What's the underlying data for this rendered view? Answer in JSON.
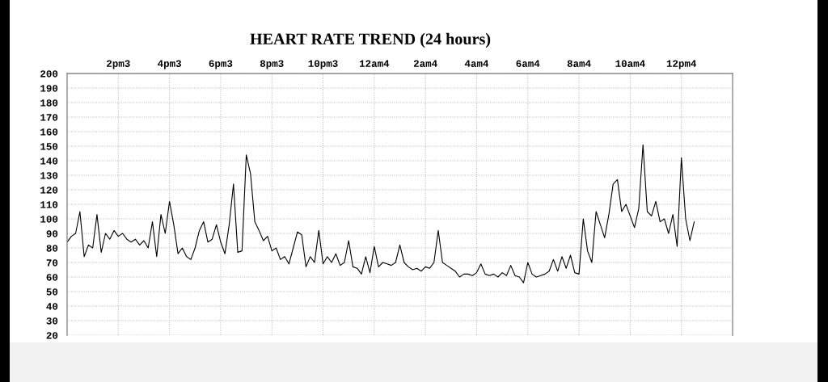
{
  "chart_data": {
    "type": "line",
    "title": "HEART RATE TREND (24 hours)",
    "categories": [
      null,
      null,
      null,
      null,
      null,
      null,
      null,
      null,
      null,
      null,
      null,
      null,
      "2pm3",
      null,
      null,
      null,
      null,
      null,
      null,
      null,
      null,
      null,
      null,
      null,
      "4pm3",
      null,
      null,
      null,
      null,
      null,
      null,
      null,
      null,
      null,
      null,
      null,
      "6pm3",
      null,
      null,
      null,
      null,
      null,
      null,
      null,
      null,
      null,
      null,
      null,
      "8pm3",
      null,
      null,
      null,
      null,
      null,
      null,
      null,
      null,
      null,
      null,
      null,
      "10pm3",
      null,
      null,
      null,
      null,
      null,
      null,
      null,
      null,
      null,
      null,
      null,
      "12am4",
      null,
      null,
      null,
      null,
      null,
      null,
      null,
      null,
      null,
      null,
      null,
      "2am4",
      null,
      null,
      null,
      null,
      null,
      null,
      null,
      null,
      null,
      null,
      null,
      "4am4",
      null,
      null,
      null,
      null,
      null,
      null,
      null,
      null,
      null,
      null,
      null,
      "6am4",
      null,
      null,
      null,
      null,
      null,
      null,
      null,
      null,
      null,
      null,
      null,
      "8am4",
      null,
      null,
      null,
      null,
      null,
      null,
      null,
      null,
      null,
      null,
      null,
      "10am4",
      null,
      null,
      null,
      null,
      null,
      null,
      null,
      null,
      null,
      null,
      null,
      "12pm4",
      null,
      null,
      null,
      null,
      null,
      null,
      null,
      null,
      null,
      null,
      null,
      null
    ],
    "values": [
      84,
      88,
      90,
      105,
      74,
      82,
      80,
      103,
      77,
      90,
      86,
      92,
      88,
      90,
      86,
      84,
      86,
      82,
      85,
      80,
      98,
      74,
      103,
      90,
      112,
      96,
      76,
      80,
      74,
      72,
      80,
      92,
      98,
      84,
      86,
      96,
      84,
      76,
      96,
      124,
      77,
      78,
      144,
      131,
      98,
      92,
      85,
      88,
      78,
      80,
      72,
      74,
      69,
      80,
      91,
      89,
      67,
      74,
      70,
      92,
      69,
      74,
      70,
      76,
      68,
      70,
      85,
      67,
      66,
      62,
      74,
      63,
      81,
      67,
      70,
      69,
      68,
      70,
      82,
      70,
      67,
      65,
      66,
      64,
      67,
      66,
      70,
      92,
      70,
      68,
      66,
      64,
      60,
      62,
      62,
      61,
      63,
      69,
      62,
      61,
      62,
      60,
      63,
      61,
      68,
      61,
      60,
      56,
      70,
      62,
      60,
      61,
      62,
      64,
      72,
      64,
      74,
      66,
      75,
      63,
      62,
      100,
      78,
      70,
      105,
      96,
      87,
      103,
      124,
      127,
      105,
      110,
      102,
      94,
      107,
      151,
      105,
      102,
      112,
      98,
      100,
      90,
      103,
      81,
      142,
      100,
      85,
      98,
      null,
      null,
      null,
      null,
      null,
      null,
      null,
      null,
      null
    ],
    "color": "#000000",
    "ylim": [
      20,
      200
    ],
    "yticks": [
      20,
      30,
      40,
      50,
      60,
      70,
      80,
      90,
      100,
      110,
      120,
      130,
      140,
      150,
      160,
      170,
      180,
      190,
      200
    ],
    "grid": true
  }
}
